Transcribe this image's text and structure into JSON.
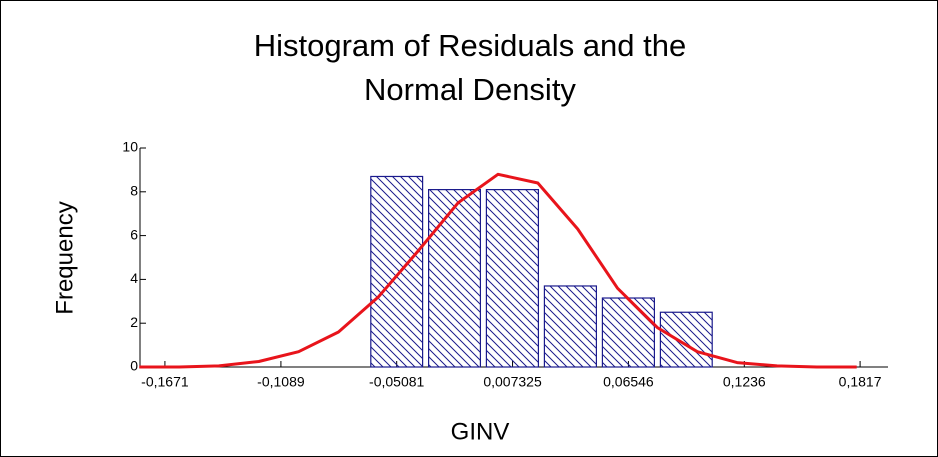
{
  "chart_data": {
    "type": "histogram",
    "title": [
      "Histogram of Residuals and the",
      "Normal Density"
    ],
    "x_label": "GINV",
    "y_label": "Frequency",
    "bins": [
      -0.0653,
      -0.0363,
      -0.0073,
      0.0218,
      0.0509,
      0.08,
      0.109
    ],
    "values": [
      8.7,
      8.1,
      8.1,
      3.7,
      3.15,
      2.5
    ],
    "color": "#1a1a8c",
    "curve": {
      "color": "#e8141b",
      "x": [
        -0.18,
        -0.16,
        -0.14,
        -0.12,
        -0.1,
        -0.08,
        -0.06,
        -0.04,
        -0.02,
        0,
        0.02,
        0.04,
        0.06,
        0.08,
        0.1,
        0.12,
        0.14,
        0.16,
        0.18
      ],
      "values": [
        0,
        0,
        0.05,
        0.25,
        0.7,
        1.6,
        3.2,
        5.3,
        7.5,
        8.8,
        8.4,
        6.3,
        3.6,
        1.8,
        0.7,
        0.2,
        0.05,
        0,
        0
      ]
    },
    "xlim": [
      -0.1796,
      0.1957
    ],
    "ylim": [
      0,
      10
    ],
    "xticks": [
      {
        "value": -0.1671,
        "label": "-0,1671"
      },
      {
        "value": -0.1089,
        "label": "-0,1089"
      },
      {
        "value": -0.05081,
        "label": "-0,05081"
      },
      {
        "value": 0.007325,
        "label": "0,007325"
      },
      {
        "value": 0.06546,
        "label": "0,06546"
      },
      {
        "value": 0.1236,
        "label": "0,1236"
      },
      {
        "value": 0.1817,
        "label": "0,1817"
      }
    ],
    "yticks": [
      0,
      2,
      4,
      6,
      8,
      10
    ]
  }
}
